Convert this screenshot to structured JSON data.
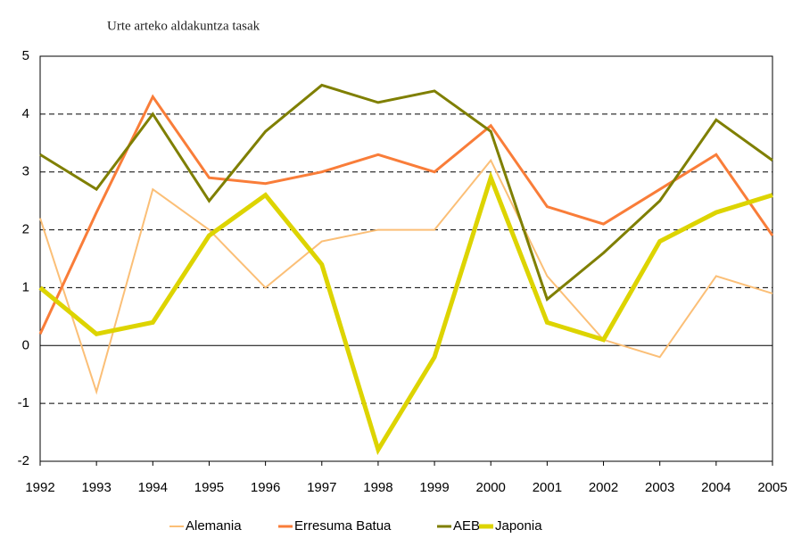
{
  "chart_data": {
    "type": "line",
    "title": "Urte arteko aldakuntza tasak",
    "x": [
      1992,
      1993,
      1994,
      1995,
      1996,
      1997,
      1998,
      1999,
      2000,
      2001,
      2002,
      2003,
      2004,
      2005
    ],
    "series": [
      {
        "name": "Alemania",
        "color": "#fbbf77",
        "values": [
          2.2,
          -0.8,
          2.7,
          2.0,
          1.0,
          1.8,
          2.0,
          2.0,
          3.2,
          1.2,
          0.1,
          -0.2,
          1.2,
          0.9
        ]
      },
      {
        "name": "Erresuma Batua",
        "color": "#f97d39",
        "values": [
          0.2,
          2.3,
          4.3,
          2.9,
          2.8,
          3.0,
          3.3,
          3.0,
          3.8,
          2.4,
          2.1,
          2.7,
          3.3,
          1.9
        ]
      },
      {
        "name": "AEB",
        "color": "#7f7f00",
        "values": [
          3.3,
          2.7,
          4.0,
          2.5,
          3.7,
          4.5,
          4.2,
          4.4,
          3.7,
          0.8,
          1.6,
          2.5,
          3.9,
          3.2
        ]
      },
      {
        "name": "Japonia",
        "color": "#ddd400",
        "values": [
          1.0,
          0.2,
          0.4,
          1.9,
          2.6,
          1.4,
          -1.8,
          -0.2,
          2.9,
          0.4,
          0.1,
          1.8,
          2.3,
          2.6
        ]
      }
    ],
    "xlim": [
      1992,
      2005
    ],
    "xticks": [
      1992,
      1993,
      1994,
      1995,
      1996,
      1997,
      1998,
      1999,
      2000,
      2001,
      2002,
      2003,
      2004,
      2005
    ],
    "ylim": [
      -2,
      5
    ],
    "yticks": [
      -2,
      -1,
      0,
      1,
      2,
      3,
      4,
      5
    ],
    "grid": true,
    "legend": "bottom"
  }
}
